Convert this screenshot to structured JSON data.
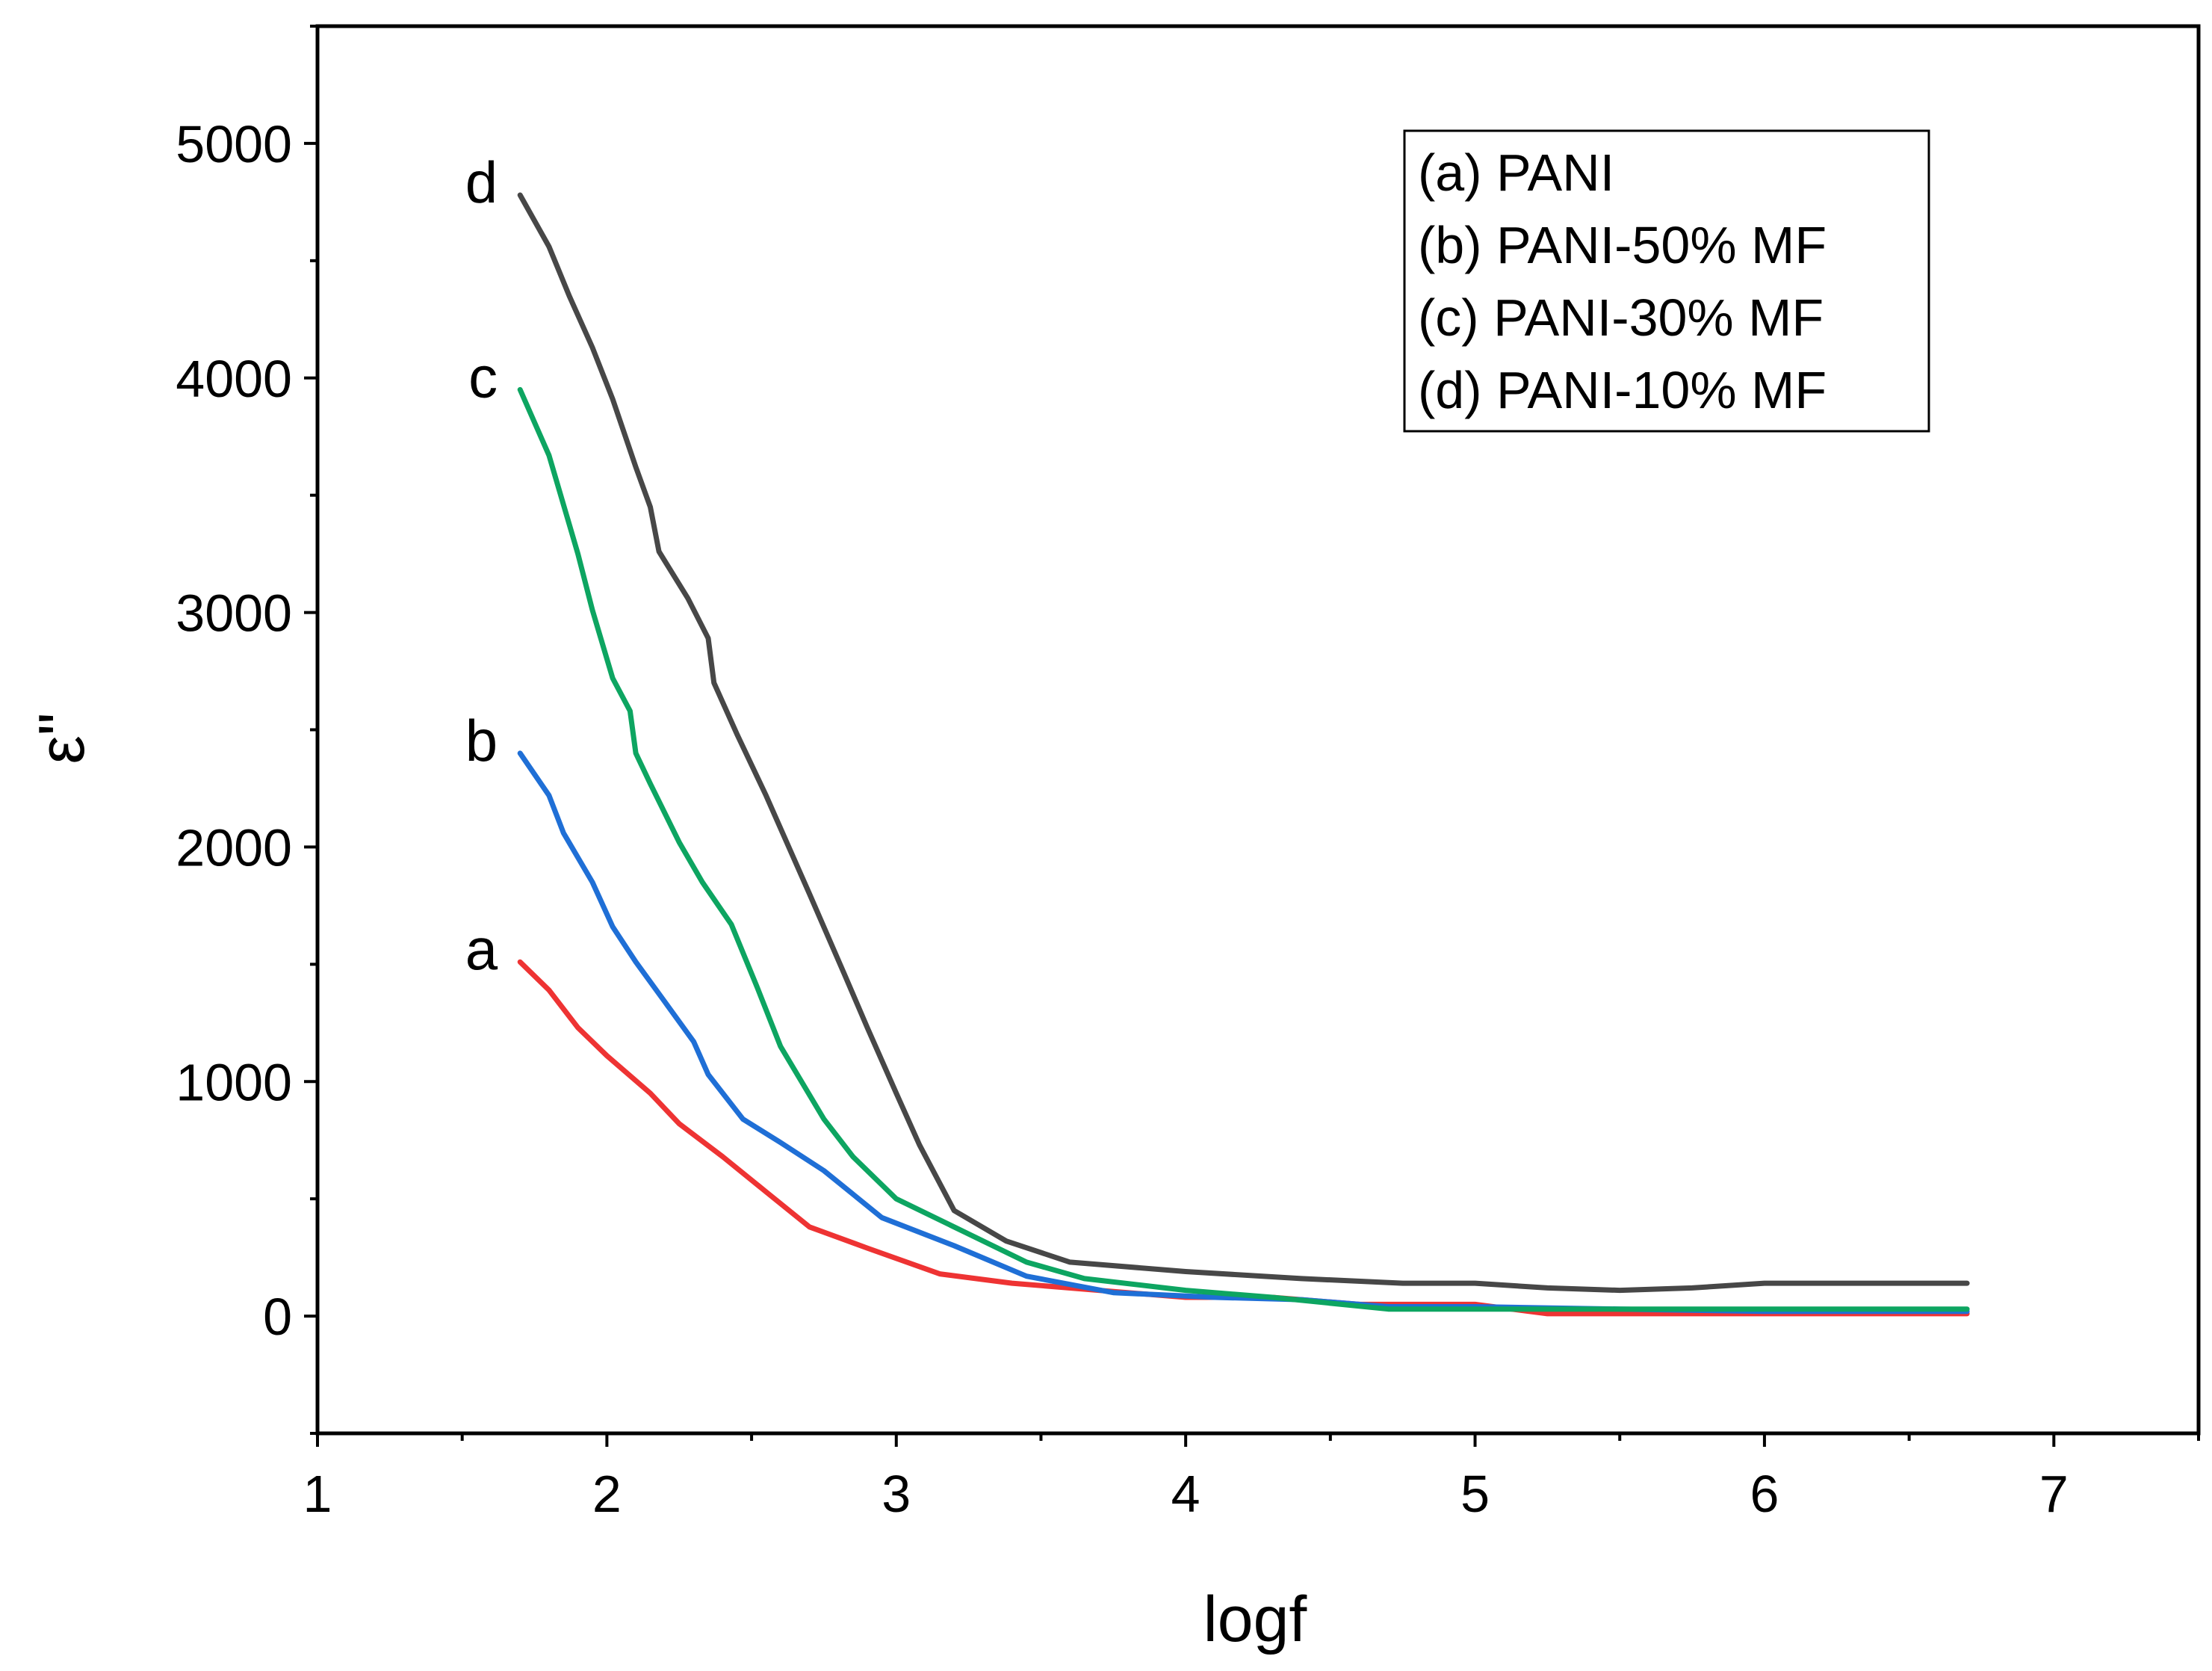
{
  "chart_data": {
    "type": "line",
    "title": "",
    "xlabel": "logf",
    "ylabel": "ε\"",
    "xlim": [
      1,
      7.5
    ],
    "ylim": [
      -500,
      5500
    ],
    "x_ticks": [
      "1",
      "2",
      "3",
      "4",
      "5",
      "6",
      "7"
    ],
    "y_ticks": [
      "0",
      "1000",
      "2000",
      "3000",
      "4000",
      "5000"
    ],
    "x_tick_values": [
      1,
      2,
      3,
      4,
      5,
      6,
      7
    ],
    "y_tick_values": [
      0,
      1000,
      2000,
      3000,
      4000,
      5000
    ],
    "legend_position": "top-right",
    "series": [
      {
        "name": "(a) PANI",
        "label": "a",
        "color": "#ee3333",
        "x": [
          1.7,
          1.8,
          1.9,
          2.0,
          2.15,
          2.25,
          2.4,
          2.55,
          2.7,
          2.9,
          3.15,
          3.4,
          3.7,
          4.0,
          4.3,
          4.6,
          5.0,
          5.25,
          5.5,
          6.0,
          6.7
        ],
        "y": [
          1510,
          1390,
          1230,
          1110,
          950,
          820,
          680,
          530,
          380,
          290,
          180,
          140,
          110,
          80,
          80,
          50,
          50,
          10,
          10,
          10,
          10
        ]
      },
      {
        "name": "(b) PANI-50% MF",
        "label": "b",
        "color": "#1f6fd6",
        "x": [
          1.7,
          1.8,
          1.85,
          1.95,
          2.02,
          2.1,
          2.2,
          2.3,
          2.35,
          2.47,
          2.6,
          2.75,
          2.95,
          3.2,
          3.45,
          3.75,
          4.1,
          4.4,
          4.7,
          5.0,
          5.5,
          6.0,
          6.7
        ],
        "y": [
          2400,
          2220,
          2060,
          1850,
          1660,
          1510,
          1340,
          1170,
          1030,
          840,
          740,
          620,
          420,
          300,
          170,
          100,
          80,
          70,
          40,
          40,
          30,
          20,
          20
        ]
      },
      {
        "name": "(c) PANI-30% MF",
        "label": "c",
        "color": "#0da561",
        "x": [
          1.7,
          1.8,
          1.9,
          1.95,
          2.02,
          2.08,
          2.1,
          2.15,
          2.25,
          2.33,
          2.43,
          2.52,
          2.6,
          2.75,
          2.85,
          3.0,
          3.2,
          3.45,
          3.65,
          4.0,
          4.3,
          4.7,
          5.0,
          5.5,
          6.0,
          6.7
        ],
        "y": [
          3950,
          3670,
          3250,
          3010,
          2720,
          2580,
          2400,
          2270,
          2020,
          1850,
          1670,
          1400,
          1150,
          840,
          680,
          500,
          380,
          230,
          160,
          110,
          80,
          30,
          30,
          30,
          30,
          30
        ]
      },
      {
        "name": "(d) PANI-10% MF",
        "label": "d",
        "color": "#474747",
        "x": [
          1.7,
          1.8,
          1.87,
          1.95,
          2.02,
          2.1,
          2.15,
          2.18,
          2.28,
          2.35,
          2.37,
          2.45,
          2.55,
          2.7,
          2.82,
          2.9,
          3.0,
          3.08,
          3.2,
          3.38,
          3.6,
          4.0,
          4.4,
          4.75,
          5.0,
          5.25,
          5.5,
          5.75,
          6.0,
          6.7
        ],
        "y": [
          4780,
          4560,
          4350,
          4130,
          3910,
          3620,
          3450,
          3260,
          3060,
          2890,
          2700,
          2480,
          2220,
          1800,
          1460,
          1230,
          950,
          730,
          450,
          320,
          230,
          190,
          160,
          140,
          140,
          120,
          110,
          120,
          140,
          140
        ]
      }
    ]
  }
}
